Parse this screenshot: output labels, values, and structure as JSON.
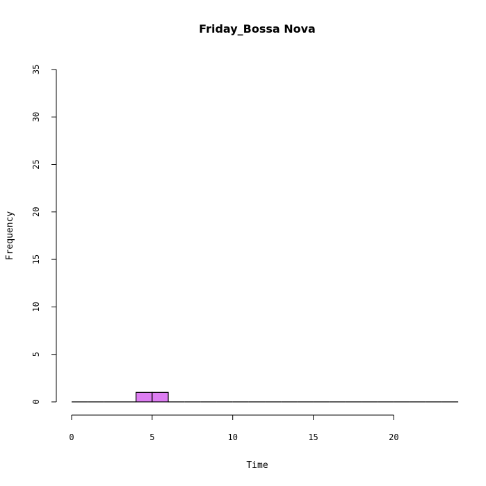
{
  "chart_data": {
    "type": "bar",
    "title": "Friday_Bossa Nova",
    "xlabel": "Time",
    "ylabel": "Frequency",
    "xlim": [
      0,
      24
    ],
    "ylim": [
      0,
      35
    ],
    "x_ticks": [
      0,
      5,
      10,
      15,
      20
    ],
    "y_ticks": [
      0,
      5,
      10,
      15,
      20,
      25,
      30,
      35
    ],
    "bin_width": 1,
    "bins": [
      {
        "start": 0,
        "end": 1,
        "count": 0
      },
      {
        "start": 1,
        "end": 2,
        "count": 0
      },
      {
        "start": 2,
        "end": 3,
        "count": 0
      },
      {
        "start": 3,
        "end": 4,
        "count": 0
      },
      {
        "start": 4,
        "end": 5,
        "count": 1
      },
      {
        "start": 5,
        "end": 6,
        "count": 1
      },
      {
        "start": 6,
        "end": 7,
        "count": 0
      },
      {
        "start": 7,
        "end": 8,
        "count": 0
      },
      {
        "start": 8,
        "end": 9,
        "count": 0
      },
      {
        "start": 9,
        "end": 10,
        "count": 0
      },
      {
        "start": 10,
        "end": 11,
        "count": 0
      },
      {
        "start": 11,
        "end": 12,
        "count": 0
      },
      {
        "start": 12,
        "end": 13,
        "count": 0
      },
      {
        "start": 13,
        "end": 14,
        "count": 0
      },
      {
        "start": 14,
        "end": 15,
        "count": 0
      },
      {
        "start": 15,
        "end": 16,
        "count": 0
      },
      {
        "start": 16,
        "end": 17,
        "count": 0
      },
      {
        "start": 17,
        "end": 18,
        "count": 0
      },
      {
        "start": 18,
        "end": 19,
        "count": 0
      },
      {
        "start": 19,
        "end": 20,
        "count": 0
      },
      {
        "start": 20,
        "end": 21,
        "count": 0
      },
      {
        "start": 21,
        "end": 22,
        "count": 0
      },
      {
        "start": 22,
        "end": 23,
        "count": 0
      },
      {
        "start": 23,
        "end": 24,
        "count": 0
      }
    ],
    "bar_color": "#dd7ef2",
    "grid": false,
    "legend": "none"
  }
}
